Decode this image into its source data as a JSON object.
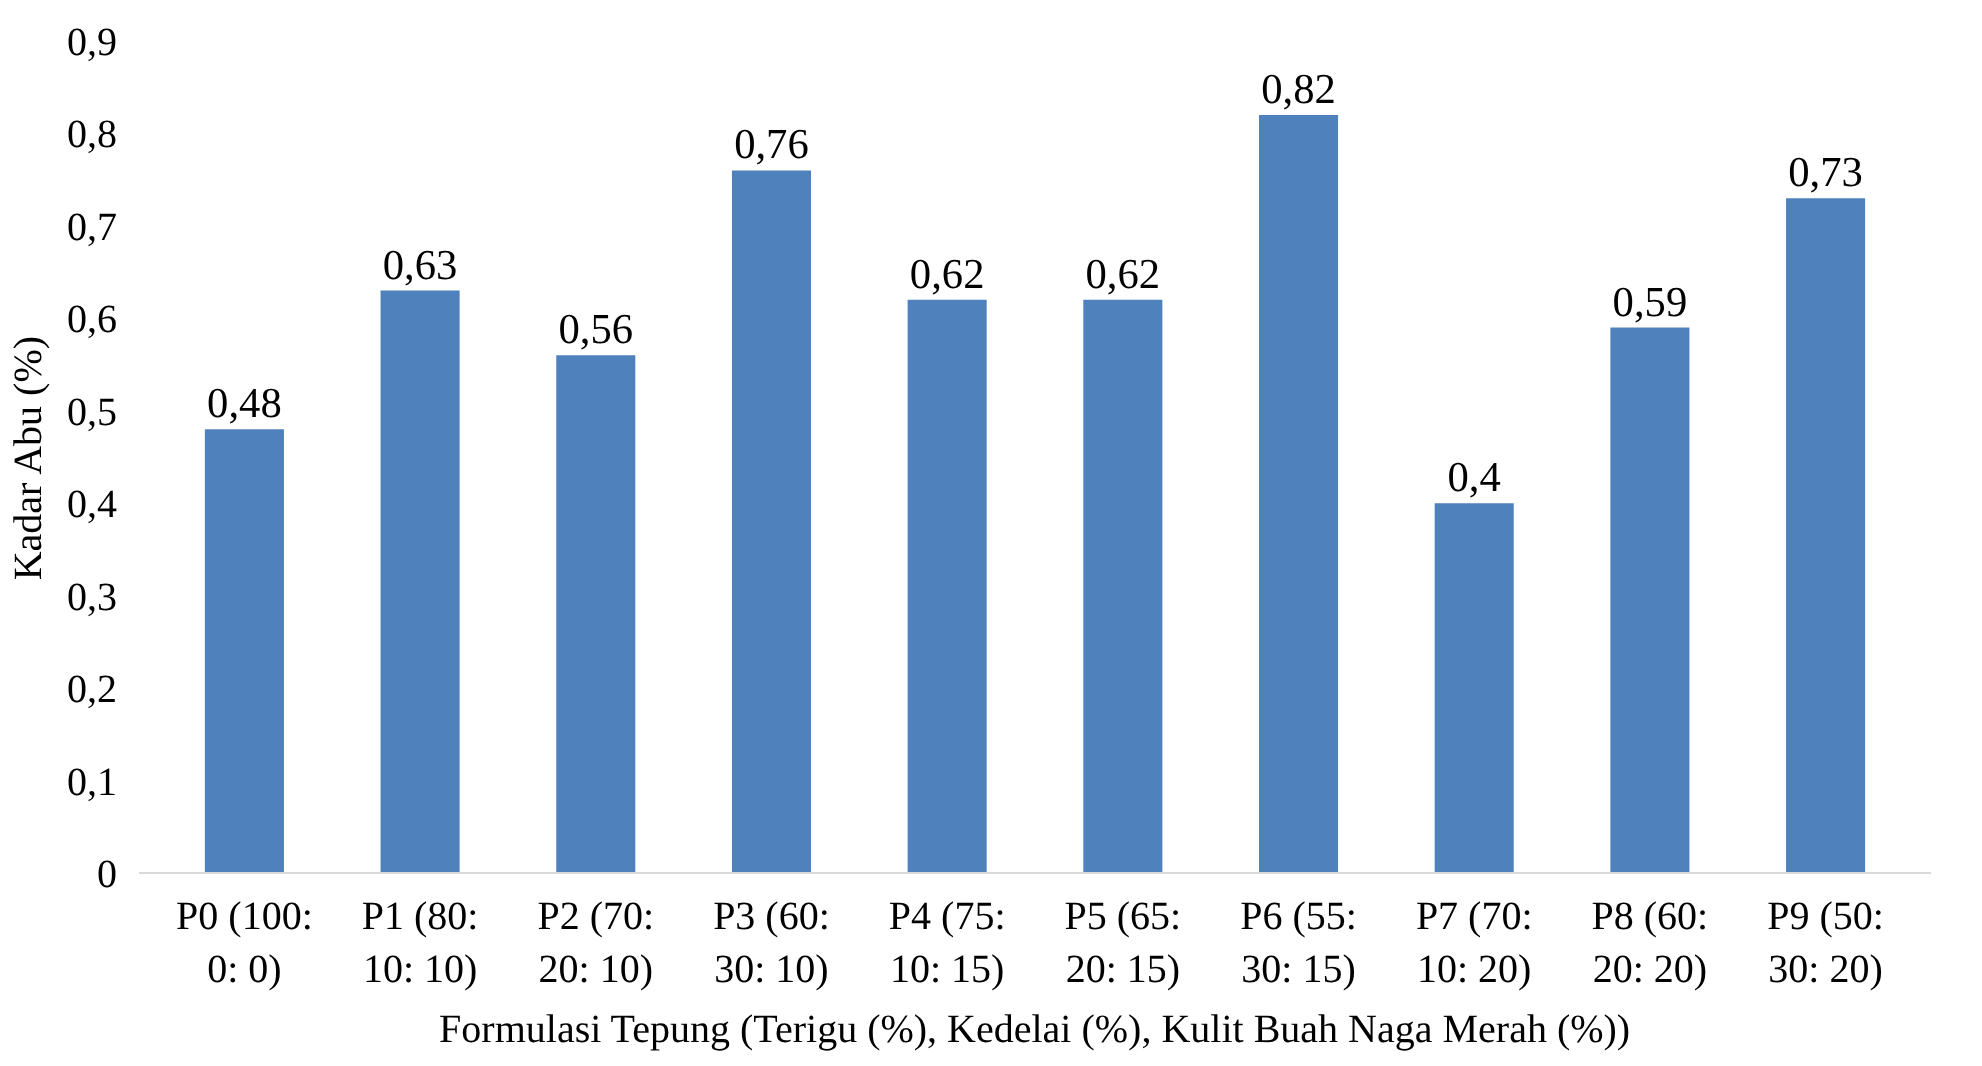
{
  "chart_data": {
    "type": "bar",
    "xlabel": "Formulasi Tepung (Terigu (%), Kedelai (%), Kulit Buah Naga Merah (%))",
    "ylabel": "Kadar Abu (%)",
    "categories": [
      "P0 (100: 0: 0)",
      "P1 (80: 10: 10)",
      "P2 (70: 20: 10)",
      "P3 (60: 30: 10)",
      "P4 (75: 10: 15)",
      "P5 (65: 20: 15)",
      "P6 (55: 30: 15)",
      "P7 (70: 10: 20)",
      "P8 (60: 20: 20)",
      "P9 (50: 30: 20)"
    ],
    "values": [
      0.48,
      0.63,
      0.56,
      0.76,
      0.62,
      0.62,
      0.82,
      0.4,
      0.59,
      0.73
    ],
    "value_labels": [
      "0,48",
      "0,63",
      "0,56",
      "0,76",
      "0,62",
      "0,62",
      "0,82",
      "0,4",
      "0,59",
      "0,73"
    ],
    "color": "#4f81bd",
    "ylim": [
      0,
      0.9
    ],
    "yticks": [
      0,
      {
        "value": 0.1,
        "label": "0,1"
      },
      {
        "value": 0.2,
        "label": "0,2"
      },
      {
        "value": 0.3,
        "label": "0,3"
      },
      {
        "value": 0.4,
        "label": "0,4"
      },
      {
        "value": 0.5,
        "label": "0,5"
      },
      {
        "value": 0.6,
        "label": "0,6"
      },
      {
        "value": 0.7,
        "label": "0,7"
      },
      {
        "value": 0.8,
        "label": "0,8"
      },
      {
        "value": 0.9,
        "label": "0,9"
      }
    ],
    "grid": false
  }
}
